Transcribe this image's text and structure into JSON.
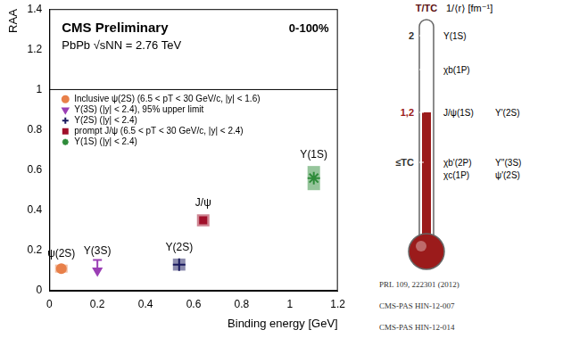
{
  "chart_data": {
    "type": "scatter",
    "title": "CMS Preliminary",
    "subtitle": "PbPb √sNN = 2.76 TeV",
    "annotations": [
      "0-100%"
    ],
    "x_label": "Binding energy [GeV]",
    "y_label": "RAA",
    "xlim": [
      0,
      1.2
    ],
    "xticks": [
      0,
      0.2,
      0.4,
      0.6,
      0.8,
      1,
      1.2
    ],
    "ylim": [
      0,
      1.4
    ],
    "yticks": [
      0,
      0.2,
      0.4,
      0.6,
      0.8,
      1,
      1.2,
      1.4
    ],
    "grid": false,
    "legend": "upper left",
    "reference_line": 1,
    "series": [
      {
        "name": "Inclusive ψ(2S) (6.5 < pT < 30 GeV/c, |y| < 1.6)",
        "label": "ψ(2S)",
        "x": [
          0.05
        ],
        "values": [
          0.11
        ],
        "errors": [
          0.02
        ],
        "color": "#e8804a",
        "marker": "circle"
      },
      {
        "name": "Υ(3S) (|y| < 2.4), 95% upper limit",
        "label": "Υ(3S)",
        "x": [
          0.2
        ],
        "values": [
          0.1
        ],
        "color": "#9b3fb5",
        "marker": "arrow_down"
      },
      {
        "name": "Υ(2S) (|y| < 2.4)",
        "label": "Υ(2S)",
        "x": [
          0.54
        ],
        "values": [
          0.13
        ],
        "errors": [
          0.03
        ],
        "color": "#1a1a5e",
        "marker": "cross"
      },
      {
        "name": "prompt J/ψ (6.5 < pT < 30 GeV/c, |y| < 2.4)",
        "label": "J/ψ",
        "x": [
          0.64
        ],
        "values": [
          0.35
        ],
        "errors": [
          0.03
        ],
        "color": "#a0102a",
        "marker": "square"
      },
      {
        "name": "Υ(1S) (|y| < 2.4)",
        "label": "Υ(1S)",
        "x": [
          1.1
        ],
        "values": [
          0.56
        ],
        "errors": [
          0.06
        ],
        "color": "#2e8b3a",
        "marker": "star"
      }
    ]
  },
  "diagram": {
    "header": [
      "T/TC",
      "1/⟨r⟩ [fm⁻¹]"
    ],
    "levels": [
      {
        "label": "2",
        "rows": [
          [
            "Υ(1S)"
          ]
        ]
      },
      {
        "label": null,
        "rows": [
          [
            "χb(1P)"
          ]
        ]
      },
      {
        "label": "1,2",
        "rows": [
          [
            "J/ψ(1S)",
            "Υ'(2S)"
          ]
        ]
      },
      {
        "label": "≤TC",
        "rows": [
          [
            "χb'(2P)",
            "Υ''(3S)"
          ],
          [
            "χc(1P)",
            "ψ'(2S)"
          ]
        ]
      }
    ],
    "references": [
      "PRL 109, 222301 (2012)",
      "CMS-PAS HIN-12-007",
      "CMS-PAS HIN-12-014"
    ]
  }
}
